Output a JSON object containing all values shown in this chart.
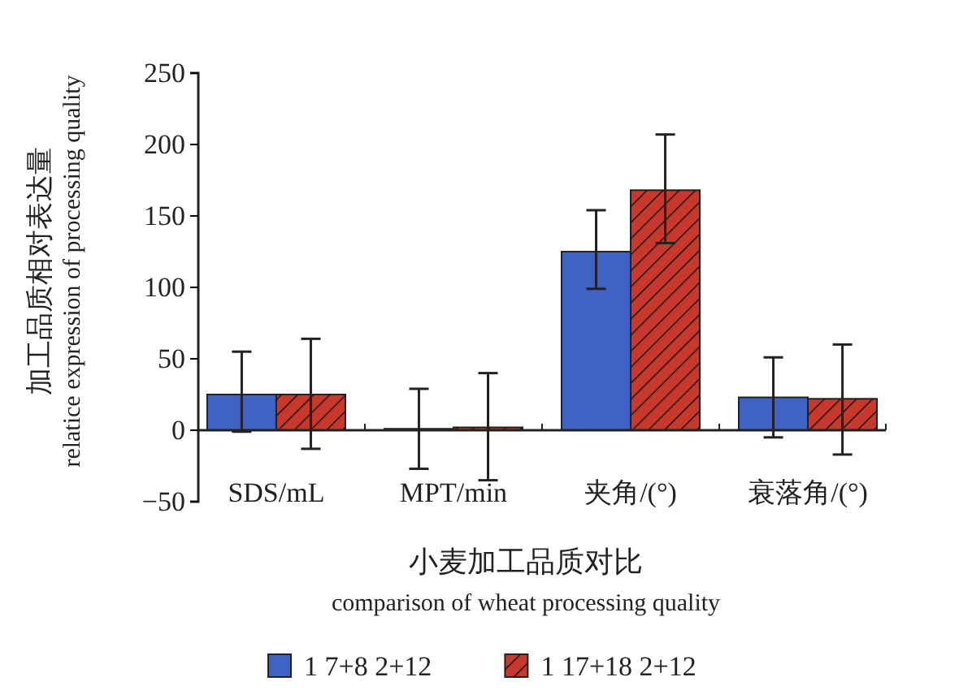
{
  "chart_data": {
    "type": "bar",
    "categories": [
      "SDS/mL",
      "MPT/min",
      "夹角/(°)",
      "衰落角/(°)"
    ],
    "series": [
      {
        "name": "1 7+8 2+12",
        "color": "#3f62c4",
        "values": [
          25,
          1,
          125,
          23
        ],
        "errors": [
          [
            -1,
            55
          ],
          [
            -27,
            29
          ],
          [
            99,
            154
          ],
          [
            -5,
            51
          ]
        ]
      },
      {
        "name": "1 17+18 2+12",
        "color": "#c8382c",
        "values": [
          25,
          2,
          168,
          22
        ],
        "errors": [
          [
            -13,
            64
          ],
          [
            -35,
            40
          ],
          [
            131,
            207
          ],
          [
            -17,
            60
          ]
        ]
      }
    ],
    "ylim": [
      -50,
      250
    ],
    "yticks": [
      -50,
      0,
      50,
      100,
      150,
      200,
      250
    ],
    "ylabel": "加工品质相对表达量\nrelatice expression of processing quality",
    "xlabel": "小麦加工品质对比\ncomparison of wheat processing quality",
    "grid": false,
    "legend": "bottom"
  }
}
